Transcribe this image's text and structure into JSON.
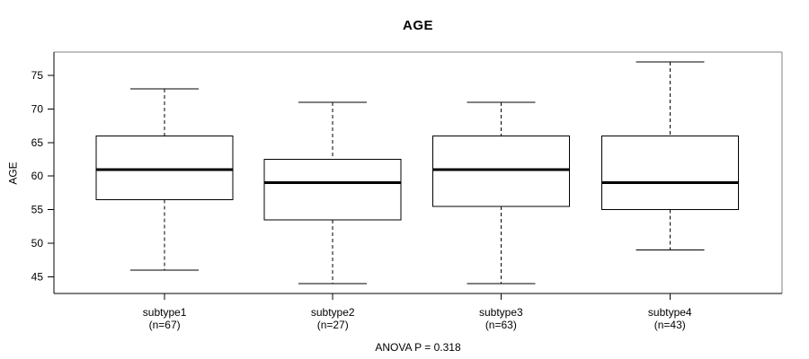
{
  "chart_data": {
    "type": "boxplot",
    "title": "AGE",
    "ylabel": "AGE",
    "xlabel": "",
    "annotation": "ANOVA P = 0.318",
    "ylim": [
      42.5,
      78.5
    ],
    "yticks": [
      45,
      50,
      55,
      60,
      65,
      70,
      75
    ],
    "grid": false,
    "legend": "none",
    "groups": [
      {
        "label": "subtype1",
        "n_label": "(n=67)",
        "n": 67,
        "whisker_low": 46,
        "q1": 56.5,
        "median": 61,
        "q3": 66,
        "whisker_high": 73,
        "outliers": []
      },
      {
        "label": "subtype2",
        "n_label": "(n=27)",
        "n": 27,
        "whisker_low": 44,
        "q1": 53.5,
        "median": 59,
        "q3": 62.5,
        "whisker_high": 71,
        "outliers": []
      },
      {
        "label": "subtype3",
        "n_label": "(n=63)",
        "n": 63,
        "whisker_low": 44,
        "q1": 55.5,
        "median": 61,
        "q3": 66,
        "whisker_high": 71,
        "outliers": []
      },
      {
        "label": "subtype4",
        "n_label": "(n=43)",
        "n": 43,
        "whisker_low": 49,
        "q1": 55,
        "median": 59,
        "q3": 66,
        "whisker_high": 77,
        "outliers": []
      }
    ],
    "colors": {
      "line": "#000000",
      "box_fill": "#ffffff",
      "frame_light": "#828282",
      "text": "#000000",
      "background": "#ffffff"
    }
  }
}
